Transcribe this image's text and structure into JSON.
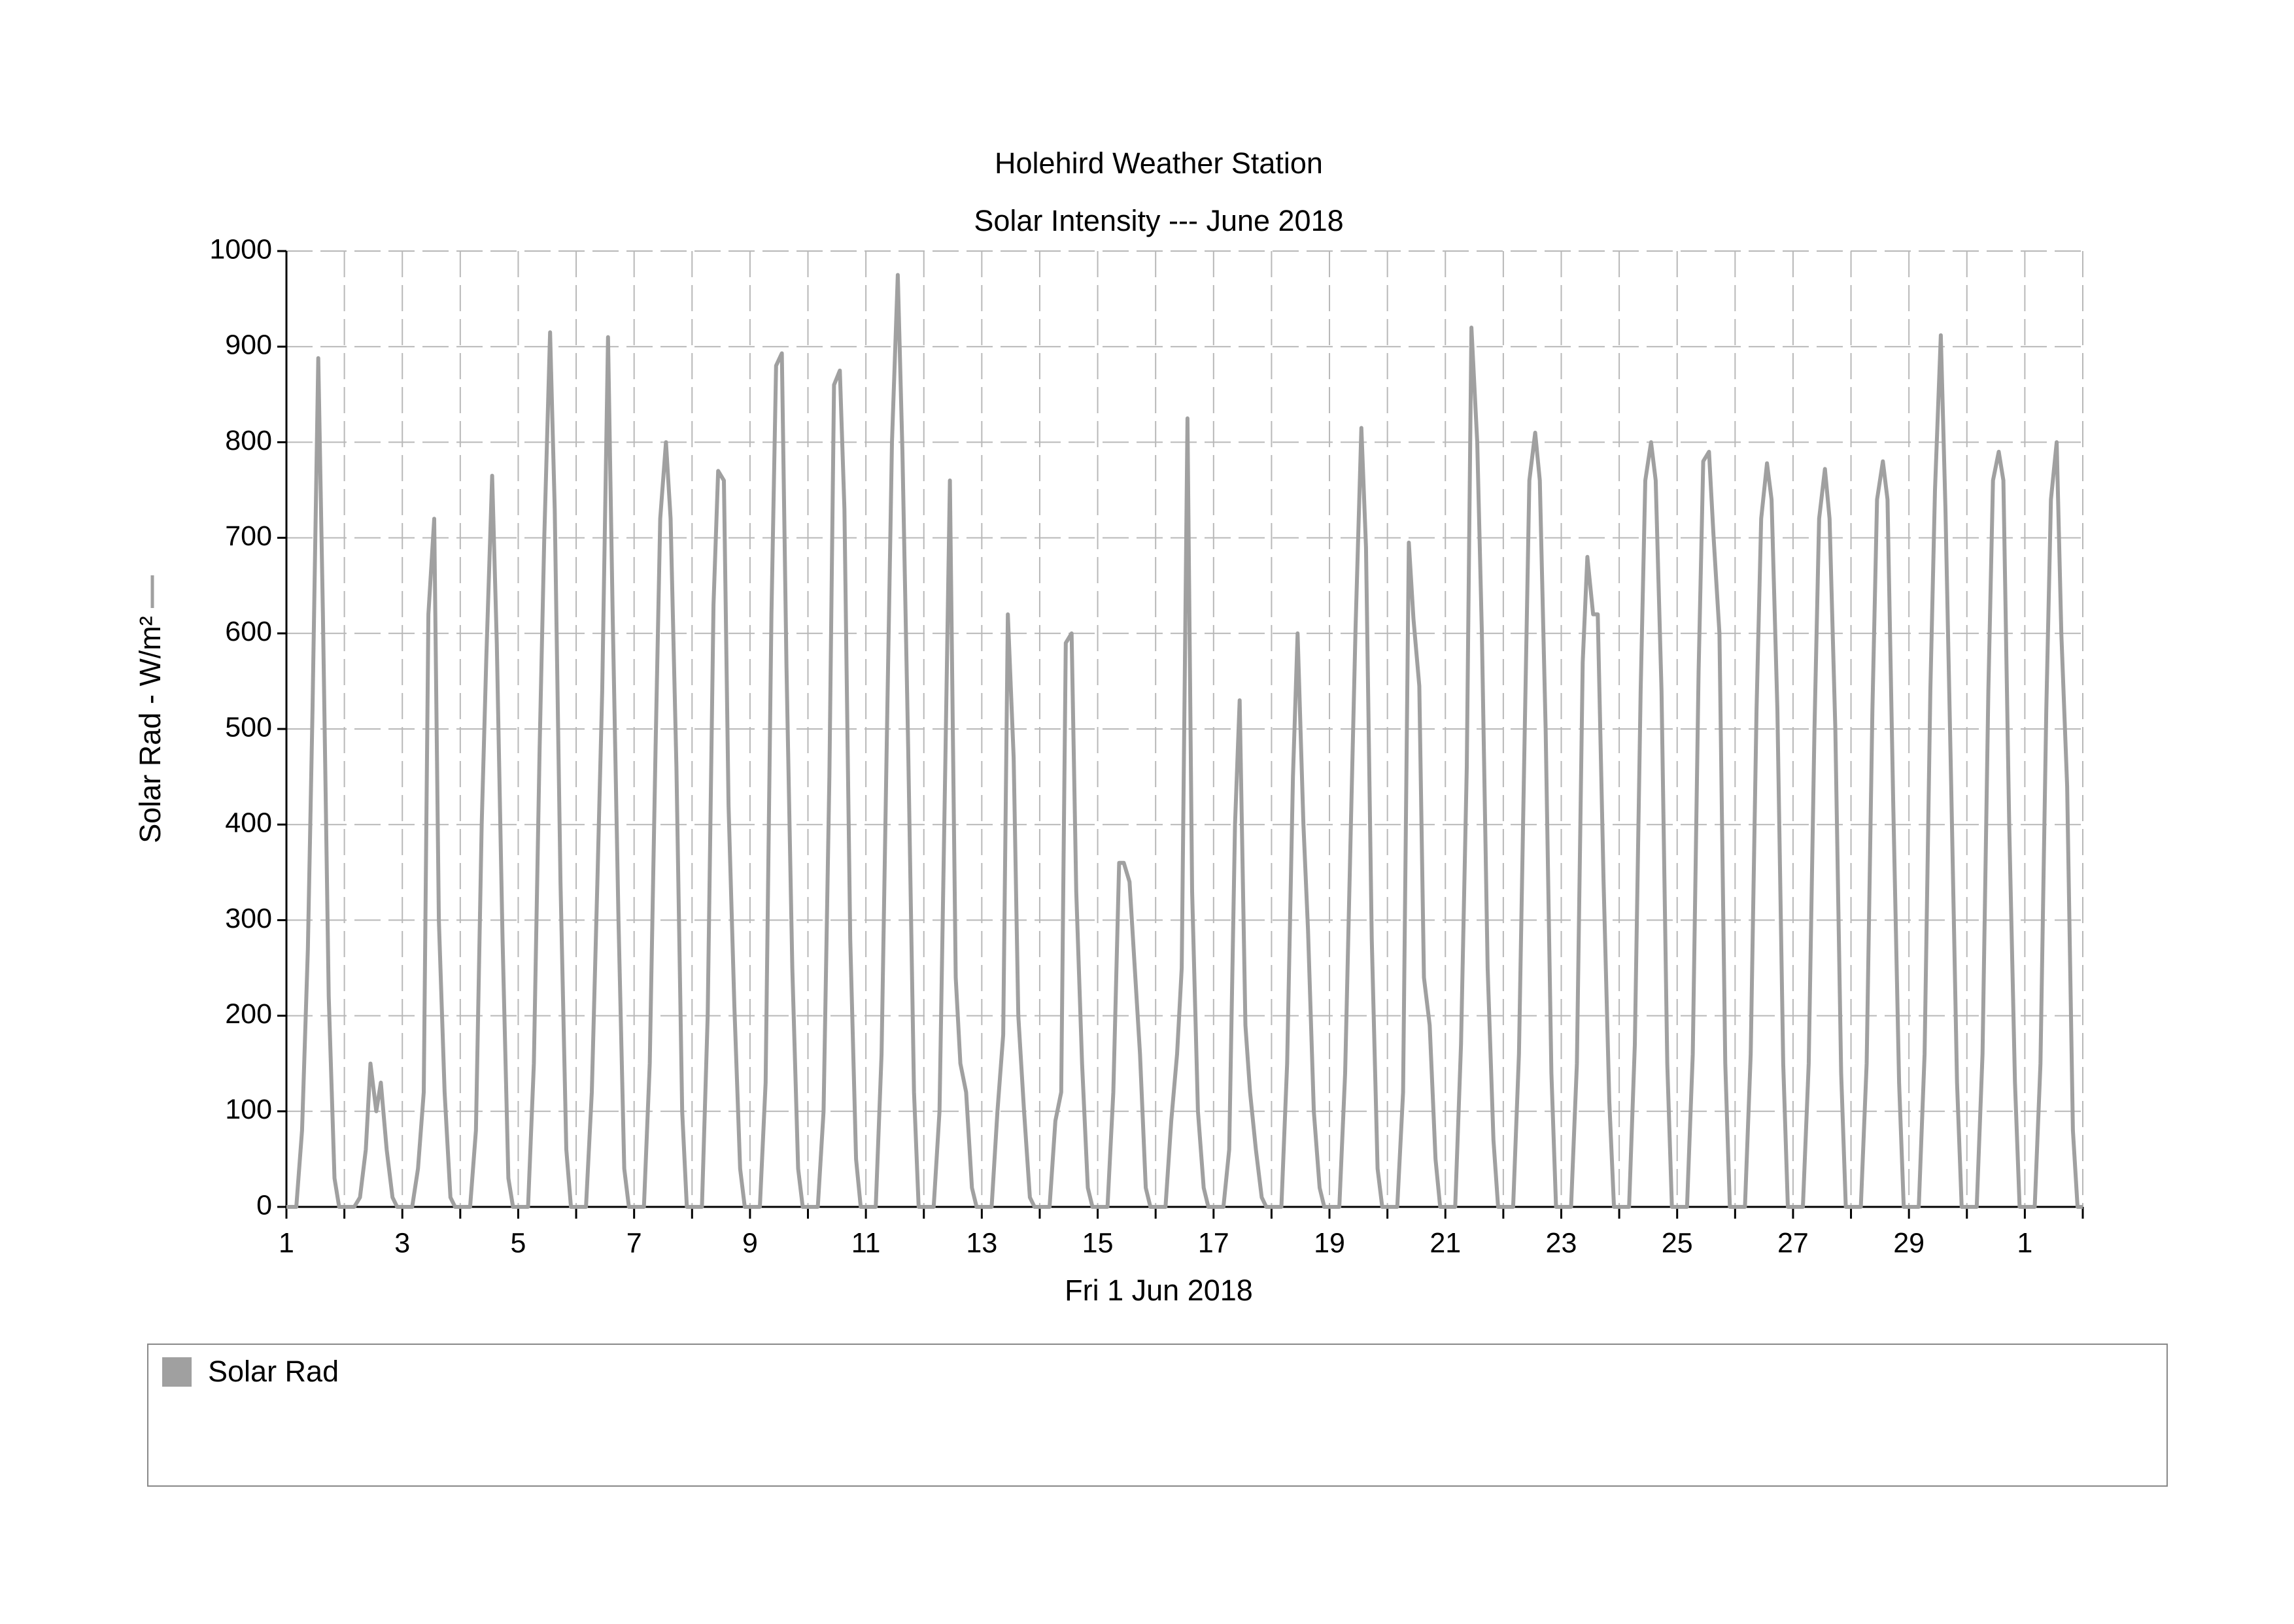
{
  "chart_data": {
    "type": "line",
    "title": "Holehird Weather Station",
    "subtitle": "Solar Intensity --- June 2018",
    "y_label": "Solar Rad - W/m²",
    "x_label": "Fri 1 Jun 2018",
    "ylim": [
      0,
      1000
    ],
    "yticks": [
      0,
      100,
      200,
      300,
      400,
      500,
      600,
      700,
      800,
      900,
      1000
    ],
    "xlim": [
      1,
      32
    ],
    "xticks": [
      1,
      {
        "value": 2,
        "label": null
      },
      3,
      {
        "value": 4,
        "label": null
      },
      5,
      {
        "value": 6,
        "label": null
      },
      7,
      {
        "value": 8,
        "label": null
      },
      9,
      {
        "value": 10,
        "label": null
      },
      11,
      {
        "value": 12,
        "label": null
      },
      13,
      {
        "value": 14,
        "label": null
      },
      15,
      {
        "value": 16,
        "label": null
      },
      17,
      {
        "value": 18,
        "label": null
      },
      19,
      {
        "value": 20,
        "label": null
      },
      21,
      {
        "value": 22,
        "label": null
      },
      23,
      {
        "value": 24,
        "label": null
      },
      25,
      {
        "value": 26,
        "label": null
      },
      27,
      {
        "value": 28,
        "label": null
      },
      29,
      {
        "value": 30,
        "label": null
      },
      {
        "value": 31,
        "label": "1"
      },
      {
        "value": 32,
        "label": null
      }
    ],
    "grid": true,
    "x": [
      1,
      1.17,
      1.27,
      1.37,
      1.45,
      1.55,
      1.63,
      1.73,
      1.83,
      1.91,
      2.17,
      2.27,
      2.37,
      2.45,
      2.55,
      2.63,
      2.73,
      2.83,
      2.91,
      3.17,
      3.27,
      3.37,
      3.45,
      3.55,
      3.63,
      3.73,
      3.83,
      3.91,
      4.17,
      4.27,
      4.37,
      4.45,
      4.55,
      4.63,
      4.73,
      4.83,
      4.91,
      5.17,
      5.27,
      5.37,
      5.45,
      5.55,
      5.63,
      5.73,
      5.83,
      5.91,
      6.17,
      6.27,
      6.37,
      6.45,
      6.55,
      6.63,
      6.73,
      6.83,
      6.91,
      7.17,
      7.27,
      7.37,
      7.45,
      7.55,
      7.63,
      7.73,
      7.83,
      7.91,
      8.17,
      8.27,
      8.37,
      8.45,
      8.55,
      8.63,
      8.73,
      8.83,
      8.91,
      9.17,
      9.27,
      9.37,
      9.45,
      9.55,
      9.63,
      9.73,
      9.83,
      9.91,
      10.17,
      10.27,
      10.37,
      10.45,
      10.55,
      10.63,
      10.73,
      10.83,
      10.91,
      11.17,
      11.27,
      11.37,
      11.45,
      11.55,
      11.63,
      11.73,
      11.83,
      11.91,
      12.17,
      12.27,
      12.37,
      12.45,
      12.55,
      12.63,
      12.73,
      12.83,
      12.91,
      13.17,
      13.27,
      13.37,
      13.45,
      13.55,
      13.63,
      13.73,
      13.83,
      13.91,
      14.17,
      14.27,
      14.37,
      14.45,
      14.55,
      14.63,
      14.73,
      14.83,
      14.91,
      15.17,
      15.27,
      15.37,
      15.45,
      15.55,
      15.63,
      15.73,
      15.83,
      15.91,
      16.17,
      16.27,
      16.37,
      16.45,
      16.55,
      16.63,
      16.73,
      16.83,
      16.91,
      17.17,
      17.27,
      17.37,
      17.45,
      17.55,
      17.63,
      17.73,
      17.83,
      17.91,
      18.17,
      18.27,
      18.37,
      18.45,
      18.55,
      18.63,
      18.73,
      18.83,
      18.91,
      19.17,
      19.27,
      19.37,
      19.45,
      19.55,
      19.63,
      19.73,
      19.83,
      19.91,
      20.17,
      20.27,
      20.37,
      20.45,
      20.55,
      20.63,
      20.73,
      20.83,
      20.91,
      21.17,
      21.27,
      21.37,
      21.45,
      21.55,
      21.63,
      21.73,
      21.83,
      21.91,
      22.17,
      22.27,
      22.37,
      22.45,
      22.55,
      22.63,
      22.73,
      22.83,
      22.91,
      23.17,
      23.27,
      23.37,
      23.45,
      23.55,
      23.63,
      23.73,
      23.83,
      23.91,
      24.17,
      24.27,
      24.37,
      24.45,
      24.55,
      24.63,
      24.73,
      24.83,
      24.91,
      25.17,
      25.27,
      25.37,
      25.45,
      25.55,
      25.63,
      25.73,
      25.83,
      25.91,
      26.17,
      26.27,
      26.37,
      26.45,
      26.55,
      26.63,
      26.73,
      26.83,
      26.91,
      27.17,
      27.27,
      27.37,
      27.45,
      27.55,
      27.63,
      27.73,
      27.83,
      27.91,
      28.17,
      28.27,
      28.37,
      28.45,
      28.55,
      28.63,
      28.73,
      28.83,
      28.91,
      29.17,
      29.27,
      29.37,
      29.45,
      29.55,
      29.63,
      29.73,
      29.83,
      29.91,
      30.17,
      30.27,
      30.37,
      30.45,
      30.55,
      30.63,
      30.73,
      30.83,
      30.91,
      31.17,
      31.27,
      31.37,
      31.45,
      31.55,
      31.63,
      31.73,
      31.83,
      31.91,
      32
    ],
    "series": [
      {
        "name": "Solar Rad",
        "color": "#a0a0a0",
        "values": [
          0,
          0,
          80,
          270,
          520,
          888,
          620,
          220,
          30,
          0,
          0,
          10,
          60,
          150,
          100,
          130,
          60,
          10,
          0,
          0,
          40,
          120,
          620,
          720,
          300,
          120,
          10,
          0,
          0,
          80,
          400,
          575,
          765,
          590,
          280,
          30,
          0,
          0,
          150,
          480,
          700,
          915,
          730,
          340,
          60,
          0,
          0,
          120,
          350,
          540,
          910,
          620,
          300,
          40,
          0,
          0,
          150,
          480,
          720,
          800,
          720,
          460,
          100,
          0,
          0,
          200,
          630,
          770,
          760,
          420,
          210,
          40,
          0,
          0,
          130,
          620,
          880,
          893,
          565,
          250,
          40,
          0,
          0,
          100,
          450,
          860,
          875,
          730,
          280,
          50,
          0,
          0,
          160,
          520,
          800,
          975,
          790,
          480,
          120,
          0,
          0,
          100,
          460,
          760,
          240,
          150,
          120,
          20,
          0,
          0,
          100,
          180,
          620,
          470,
          200,
          100,
          10,
          0,
          0,
          90,
          120,
          590,
          600,
          330,
          150,
          20,
          0,
          0,
          120,
          360,
          360,
          340,
          260,
          160,
          20,
          0,
          0,
          90,
          160,
          250,
          825,
          330,
          100,
          20,
          0,
          0,
          60,
          400,
          530,
          190,
          120,
          60,
          10,
          0,
          0,
          150,
          450,
          600,
          400,
          290,
          100,
          20,
          0,
          0,
          140,
          400,
          605,
          815,
          690,
          280,
          40,
          0,
          0,
          120,
          695,
          615,
          545,
          240,
          190,
          50,
          0,
          0,
          170,
          460,
          920,
          800,
          600,
          250,
          70,
          0,
          0,
          160,
          500,
          760,
          810,
          760,
          500,
          140,
          0,
          0,
          150,
          570,
          680,
          620,
          620,
          340,
          110,
          0,
          0,
          170,
          540,
          760,
          800,
          760,
          540,
          150,
          0,
          0,
          160,
          560,
          780,
          790,
          700,
          600,
          150,
          0,
          0,
          160,
          520,
          720,
          778,
          740,
          520,
          150,
          0,
          0,
          150,
          500,
          720,
          772,
          720,
          500,
          140,
          0,
          0,
          150,
          520,
          740,
          780,
          740,
          420,
          130,
          0,
          0,
          160,
          540,
          750,
          912,
          730,
          440,
          130,
          0,
          0,
          160,
          540,
          760,
          790,
          760,
          400,
          130,
          0,
          0,
          150,
          520,
          740,
          800,
          600,
          440,
          80,
          0,
          0
        ]
      }
    ]
  }
}
